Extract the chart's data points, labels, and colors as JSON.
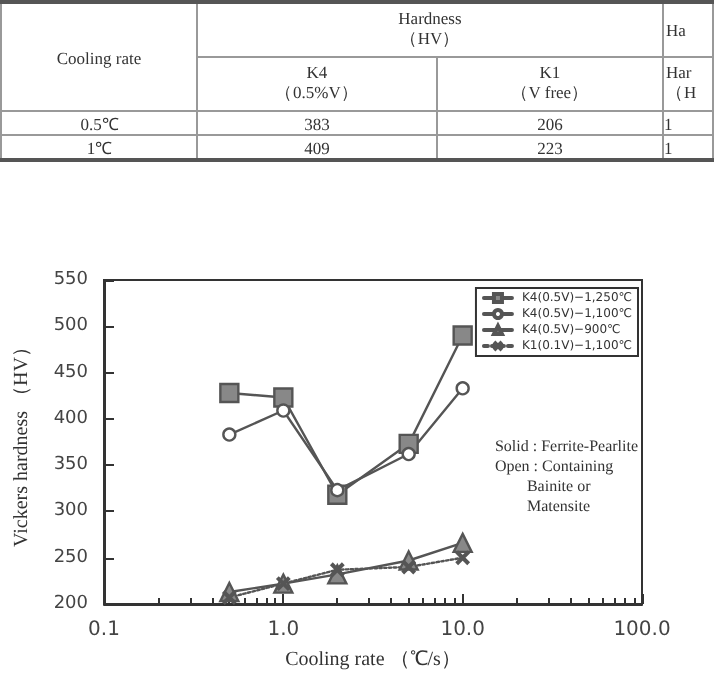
{
  "chart_data": [
    {
      "type": "other",
      "categories": [
        "Cooling rate",
        "Hardness\n（HV）",
        "Ha",
        "K4\n（0.5%V）",
        "K1\n（V free）",
        "Har\n（H"
      ],
      "annotations": [
        "0.5℃",
        "383",
        "206",
        "1",
        "1℃",
        "409",
        "223",
        "1"
      ]
    },
    {
      "type": "line",
      "xlabel": "Cooling rate （℃/s）",
      "ylabel": "Vickers hardness （HV）",
      "log": "x",
      "xlim": [
        0.1,
        100
      ],
      "xticks": [
        0.1,
        {
          "value": 1,
          "label": "1.0"
        },
        {
          "value": 10,
          "label": "10.0"
        },
        {
          "value": 100,
          "label": "100.0"
        }
      ],
      "ylim": [
        200,
        550
      ],
      "yticks": [
        200,
        250,
        300,
        350,
        400,
        450,
        500,
        550
      ],
      "grid": false,
      "legend": "top right",
      "x": [
        0.5,
        1,
        2,
        5,
        10
      ],
      "series": [
        {
          "name": "K4(0.5V)−1,250℃",
          "color": "#555555",
          "marker": "square",
          "line_style": "solid",
          "values": [
            428,
            423,
            318,
            373,
            490
          ]
        },
        {
          "name": "K4(0.5V)−1,100℃",
          "color": "#555555",
          "marker": "circle",
          "line_style": "solid",
          "values": [
            383,
            409,
            323,
            362,
            433
          ]
        },
        {
          "name": "K4(0.5V)−900℃",
          "color": "#555555",
          "marker": "triangle",
          "line_style": "solid",
          "values": [
            213,
            222,
            232,
            247,
            266
          ]
        },
        {
          "name": "K1(0.1V)−1,100℃",
          "color": "#555555",
          "marker": "cross",
          "line_style": "dotted",
          "values": [
            207,
            222,
            237,
            240,
            250
          ]
        }
      ],
      "annotations": [
        "Solid : Ferrite-Pearlite\nOpen : Containing\n        Bainite or\n        Matensite"
      ]
    }
  ]
}
